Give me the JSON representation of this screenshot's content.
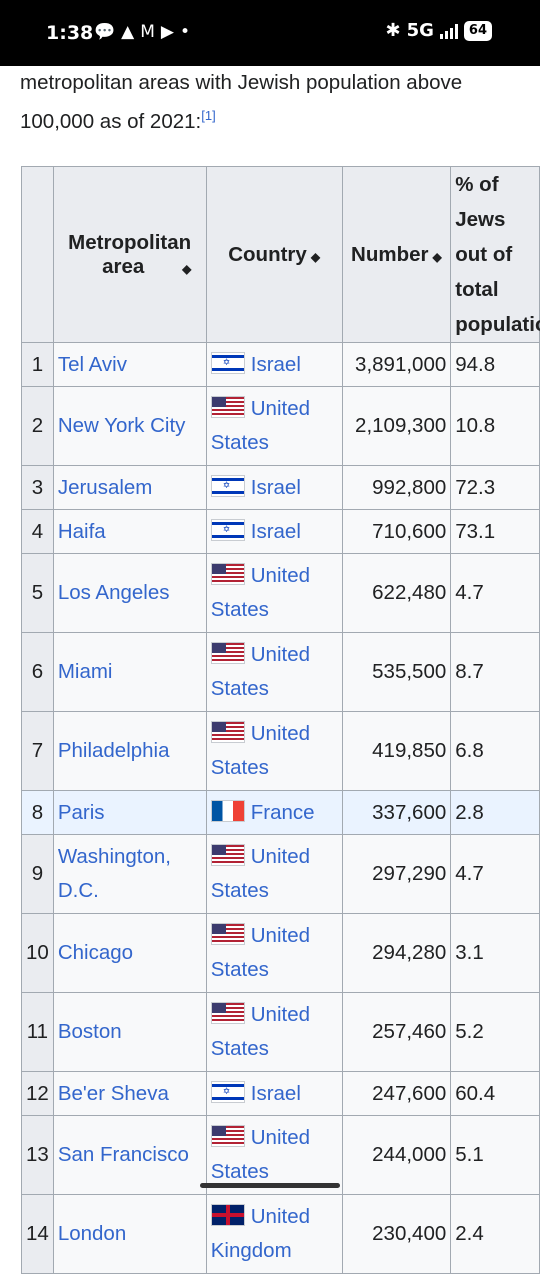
{
  "status_bar": {
    "time": "1:38",
    "left_icons": [
      "chat-bubble-icon",
      "alert-triangle-icon",
      "gmail-icon",
      "youtube-icon",
      "dot-icon"
    ],
    "network": "5G",
    "battery": "64"
  },
  "intro": {
    "text": "metropolitan areas with Jewish population above 100,000 as of 2021:",
    "ref": "[1]"
  },
  "table": {
    "headers": {
      "rank": "",
      "metro": "Metropolitan area",
      "country": "Country",
      "number": "Number",
      "percent": "% of Jews out of total population"
    },
    "rows": [
      {
        "rank": "1",
        "metro": "Tel Aviv",
        "country": "Israel",
        "flag": "il",
        "number": "3,891,000",
        "percent": "94.8"
      },
      {
        "rank": "2",
        "metro": "New York City",
        "country": "United States",
        "flag": "us",
        "number": "2,109,300",
        "percent": "10.8"
      },
      {
        "rank": "3",
        "metro": "Jerusalem",
        "country": "Israel",
        "flag": "il",
        "number": "992,800",
        "percent": "72.3"
      },
      {
        "rank": "4",
        "metro": "Haifa",
        "country": "Israel",
        "flag": "il",
        "number": "710,600",
        "percent": "73.1"
      },
      {
        "rank": "5",
        "metro": "Los Angeles",
        "country": "United States",
        "flag": "us",
        "number": "622,480",
        "percent": "4.7"
      },
      {
        "rank": "6",
        "metro": "Miami",
        "country": "United States",
        "flag": "us",
        "number": "535,500",
        "percent": "8.7"
      },
      {
        "rank": "7",
        "metro": "Philadelphia",
        "country": "United States",
        "flag": "us",
        "number": "419,850",
        "percent": "6.8"
      },
      {
        "rank": "8",
        "metro": "Paris",
        "country": "France",
        "flag": "fr",
        "number": "337,600",
        "percent": "2.8"
      },
      {
        "rank": "9",
        "metro": "Washington, D.C.",
        "country": "United States",
        "flag": "us",
        "number": "297,290",
        "percent": "4.7"
      },
      {
        "rank": "10",
        "metro": "Chicago",
        "country": "United States",
        "flag": "us",
        "number": "294,280",
        "percent": "3.1"
      },
      {
        "rank": "11",
        "metro": "Boston",
        "country": "United States",
        "flag": "us",
        "number": "257,460",
        "percent": "5.2"
      },
      {
        "rank": "12",
        "metro": "Be'er Sheva",
        "country": "Israel",
        "flag": "il",
        "number": "247,600",
        "percent": "60.4"
      },
      {
        "rank": "13",
        "metro": "San Francisco",
        "country": "United States",
        "flag": "us",
        "number": "244,000",
        "percent": "5.1"
      },
      {
        "rank": "14",
        "metro": "London",
        "country": "United Kingdom",
        "flag": "uk",
        "number": "230,400",
        "percent": "2.4"
      }
    ]
  },
  "colors": {
    "link": "#3366cc",
    "header_bg": "#eaecf0",
    "highlight_row": "#eaf3ff"
  }
}
